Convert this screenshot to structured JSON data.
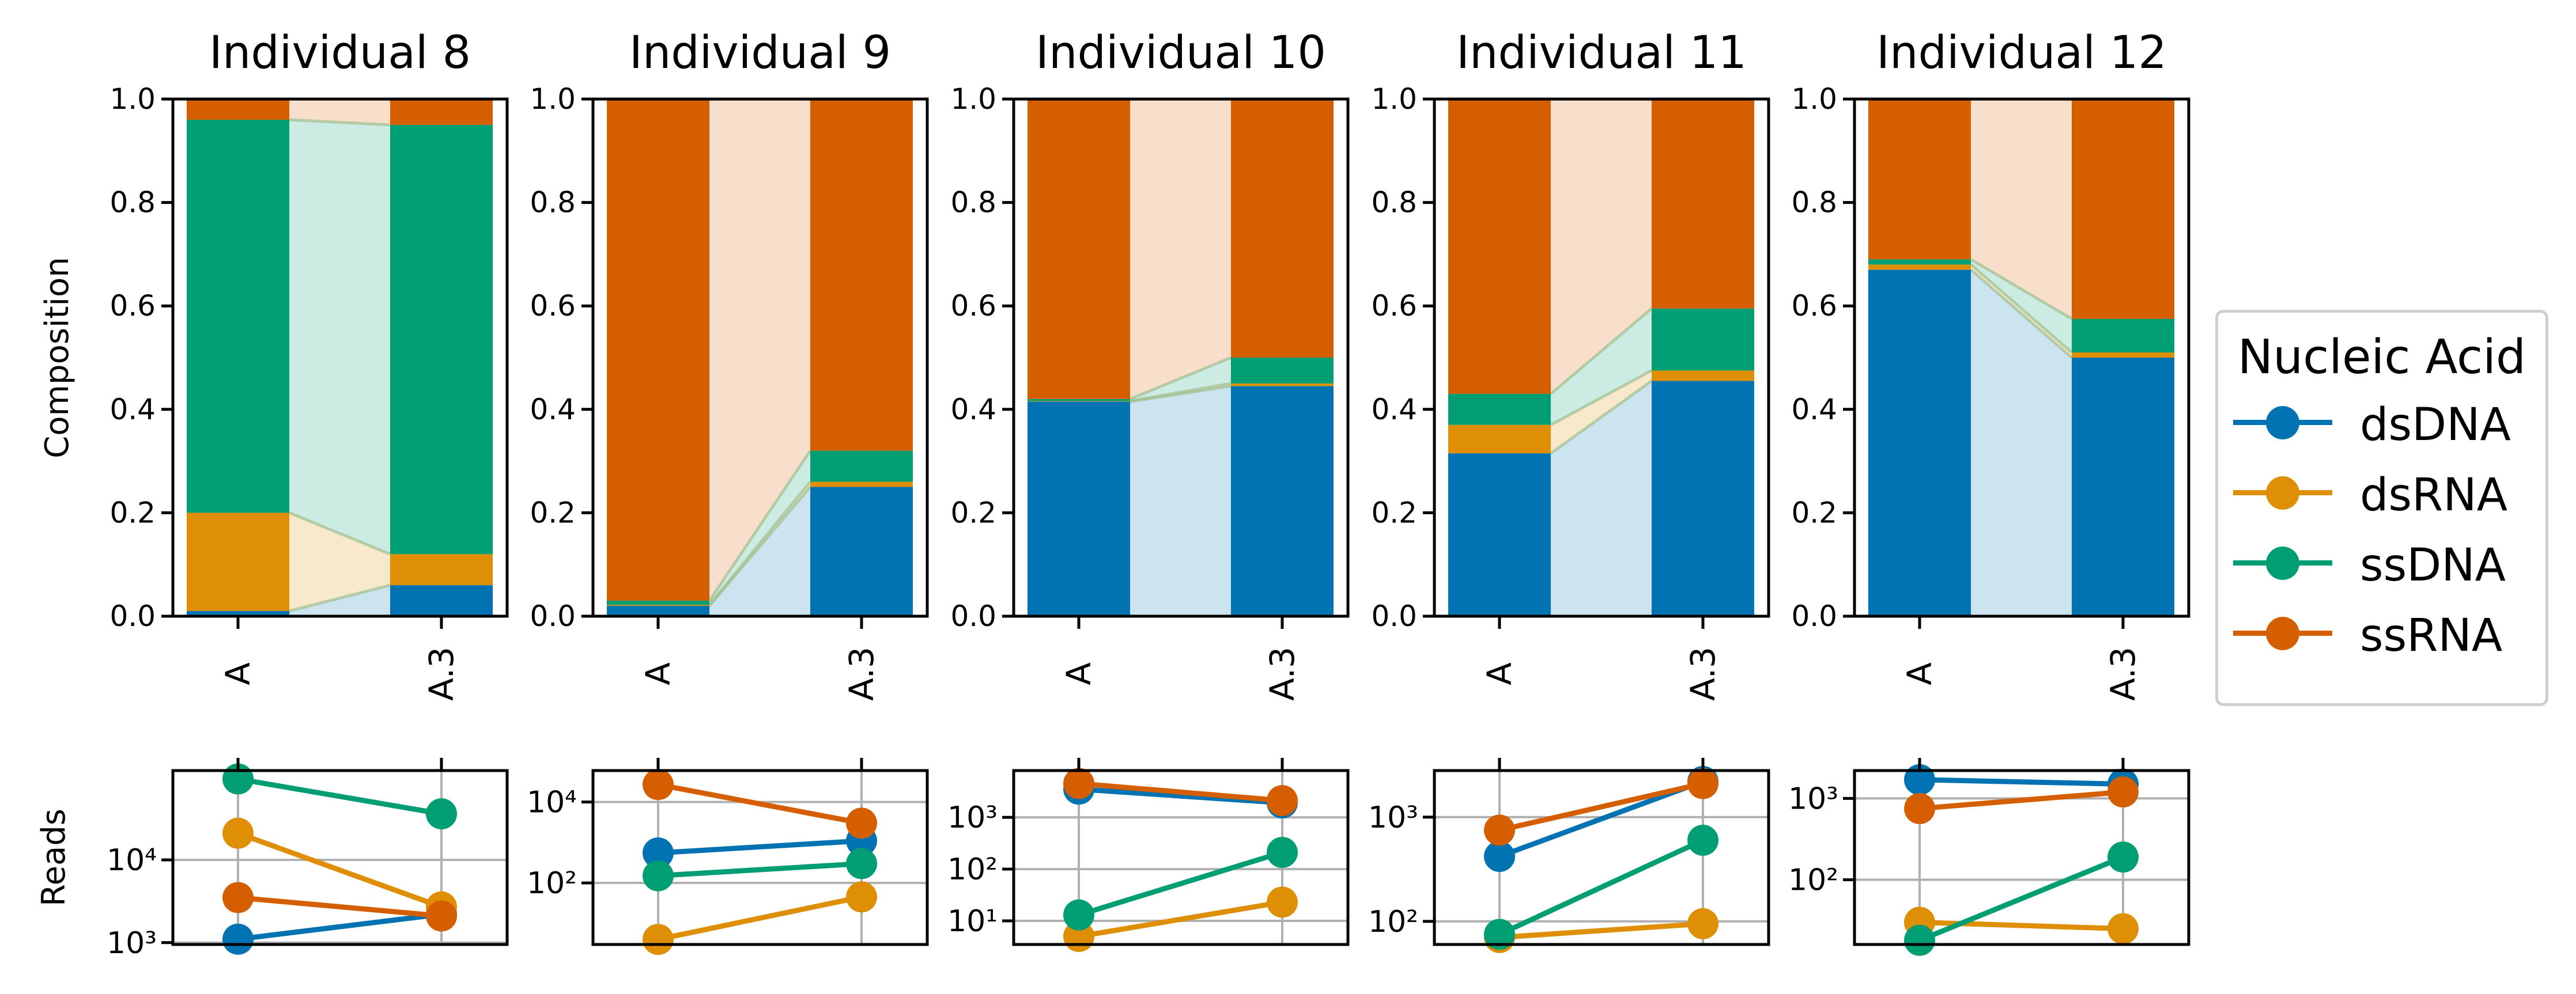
{
  "colors": {
    "dsDNA": "#0173b2",
    "dsRNA": "#de8f05",
    "ssDNA": "#029e73",
    "ssRNA": "#d55e00",
    "grid": "#b0b0b0",
    "axis": "#000000"
  },
  "legend": {
    "title": "Nucleic Acid",
    "items": [
      {
        "key": "dsDNA",
        "label": "dsDNA"
      },
      {
        "key": "dsRNA",
        "label": "dsRNA"
      },
      {
        "key": "ssDNA",
        "label": "ssDNA"
      },
      {
        "key": "ssRNA",
        "label": "ssRNA"
      }
    ],
    "placement": "right"
  },
  "chart_data": [
    {
      "type": "bar",
      "title": "Individual 8",
      "categories": [
        "A",
        "A.3"
      ],
      "stacked": true,
      "ylabel": "Composition",
      "ylim": [
        0,
        1
      ],
      "yticks": [
        "0.0",
        "0.2",
        "0.4",
        "0.6",
        "0.8",
        "1.0"
      ],
      "composition": {
        "dsDNA": [
          0.01,
          0.06
        ],
        "dsRNA": [
          0.19,
          0.06
        ],
        "ssDNA": [
          0.76,
          0.83
        ],
        "ssRNA": [
          0.04,
          0.05
        ]
      },
      "reads": {
        "ylabel": "Reads",
        "scale": "log",
        "ylim": [
          950,
          120000
        ],
        "ytick_values": [
          1000,
          10000
        ],
        "ytick_labels": [
          "10³",
          "10⁴"
        ],
        "values": {
          "dsDNA": [
            1100,
            2200
          ],
          "dsRNA": [
            21000,
            2700
          ],
          "ssDNA": [
            95000,
            36000
          ],
          "ssRNA": [
            3500,
            2100
          ]
        }
      }
    },
    {
      "type": "bar",
      "title": "Individual 9",
      "categories": [
        "A",
        "A.3"
      ],
      "stacked": true,
      "ylim": [
        0,
        1
      ],
      "yticks": [
        "0.0",
        "0.2",
        "0.4",
        "0.6",
        "0.8",
        "1.0"
      ],
      "composition": {
        "dsDNA": [
          0.02,
          0.25
        ],
        "dsRNA": [
          0.002,
          0.01
        ],
        "ssDNA": [
          0.008,
          0.06
        ],
        "ssRNA": [
          0.97,
          0.68
        ]
      },
      "reads": {
        "scale": "log",
        "ylim": [
          3,
          60000
        ],
        "ytick_values": [
          100,
          10000
        ],
        "ytick_labels": [
          "10²",
          "10⁴"
        ],
        "values": {
          "dsDNA": [
            550,
            1100
          ],
          "dsRNA": [
            4,
            45
          ],
          "ssDNA": [
            150,
            300
          ],
          "ssRNA": [
            27000,
            3000
          ]
        }
      }
    },
    {
      "type": "bar",
      "title": "Individual 10",
      "categories": [
        "A",
        "A.3"
      ],
      "stacked": true,
      "ylim": [
        0,
        1
      ],
      "yticks": [
        "0.0",
        "0.2",
        "0.4",
        "0.6",
        "0.8",
        "1.0"
      ],
      "composition": {
        "dsDNA": [
          0.415,
          0.445
        ],
        "dsRNA": [
          0.001,
          0.005
        ],
        "ssDNA": [
          0.004,
          0.05
        ],
        "ssRNA": [
          0.58,
          0.5
        ]
      },
      "reads": {
        "scale": "log",
        "ylim": [
          3.5,
          8000
        ],
        "ytick_values": [
          10,
          100,
          1000
        ],
        "ytick_labels": [
          "10¹",
          "10²",
          "10³"
        ],
        "values": {
          "dsDNA": [
            3500,
            1900
          ],
          "dsRNA": [
            5,
            23
          ],
          "ssDNA": [
            13,
            210
          ],
          "ssRNA": [
            4500,
            2100
          ]
        }
      }
    },
    {
      "type": "bar",
      "title": "Individual 11",
      "categories": [
        "A",
        "A.3"
      ],
      "stacked": true,
      "ylim": [
        0,
        1
      ],
      "yticks": [
        "0.0",
        "0.2",
        "0.4",
        "0.6",
        "0.8",
        "1.0"
      ],
      "composition": {
        "dsDNA": [
          0.315,
          0.455
        ],
        "dsRNA": [
          0.055,
          0.02
        ],
        "ssDNA": [
          0.06,
          0.12
        ],
        "ssRNA": [
          0.57,
          0.405
        ]
      },
      "reads": {
        "scale": "log",
        "ylim": [
          60,
          2800
        ],
        "ytick_values": [
          100,
          1000
        ],
        "ytick_labels": [
          "10²",
          "10³"
        ],
        "values": {
          "dsDNA": [
            420,
            2200
          ],
          "dsRNA": [
            70,
            95
          ],
          "ssDNA": [
            75,
            600
          ],
          "ssRNA": [
            750,
            2100
          ]
        }
      }
    },
    {
      "type": "bar",
      "title": "Individual 12",
      "categories": [
        "A",
        "A.3"
      ],
      "stacked": true,
      "ylim": [
        0,
        1
      ],
      "yticks": [
        "0.0",
        "0.2",
        "0.4",
        "0.6",
        "0.8",
        "1.0"
      ],
      "composition": {
        "dsDNA": [
          0.67,
          0.5
        ],
        "dsRNA": [
          0.01,
          0.01
        ],
        "ssDNA": [
          0.01,
          0.065
        ],
        "ssRNA": [
          0.31,
          0.425
        ]
      },
      "reads": {
        "scale": "log",
        "ylim": [
          16,
          2200
        ],
        "ytick_values": [
          100,
          1000
        ],
        "ytick_labels": [
          "10²",
          "10³"
        ],
        "values": {
          "dsDNA": [
            1700,
            1500
          ],
          "dsRNA": [
            30,
            25
          ],
          "ssDNA": [
            18,
            190
          ],
          "ssRNA": [
            750,
            1200
          ]
        }
      }
    }
  ]
}
